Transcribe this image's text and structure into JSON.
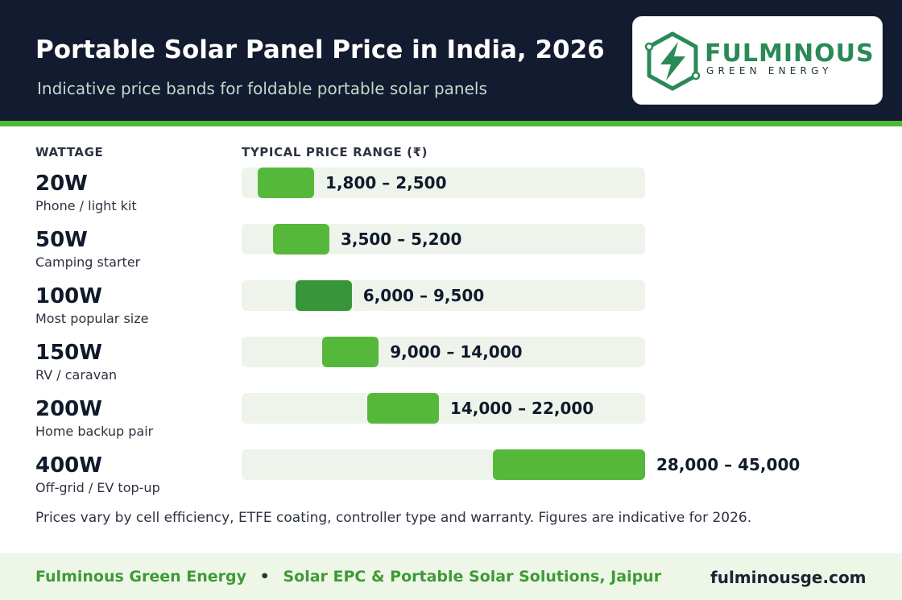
{
  "header": {
    "title": "Portable Solar Panel Price in India, 2026",
    "subtitle": "Indicative price bands for foldable portable solar panels"
  },
  "logo": {
    "name": "FULMINOUS",
    "tagline": "GREEN ENERGY",
    "icon": "lightning-hexagon-icon"
  },
  "columns": {
    "wattage": "WATTAGE",
    "price": "TYPICAL PRICE RANGE  (₹)"
  },
  "chart_data": {
    "type": "bar",
    "subtype": "floating-range",
    "axis_min": 0,
    "axis_max": 45000,
    "currency": "₹",
    "categories": [
      "20W",
      "50W",
      "100W",
      "150W",
      "200W",
      "400W"
    ],
    "rows": [
      {
        "wattage": "20W",
        "use": "Phone / light kit",
        "low": 1800,
        "high": 2500,
        "label": "1,800 – 2,500",
        "highlight": false
      },
      {
        "wattage": "50W",
        "use": "Camping starter",
        "low": 3500,
        "high": 5200,
        "label": "3,500 – 5,200",
        "highlight": false
      },
      {
        "wattage": "100W",
        "use": "Most popular size",
        "low": 6000,
        "high": 9500,
        "label": "6,000 – 9,500",
        "highlight": true
      },
      {
        "wattage": "150W",
        "use": "RV / caravan",
        "low": 9000,
        "high": 14000,
        "label": "9,000 – 14,000",
        "highlight": false
      },
      {
        "wattage": "200W",
        "use": "Home backup pair",
        "low": 14000,
        "high": 22000,
        "label": "14,000 – 22,000",
        "highlight": false
      },
      {
        "wattage": "400W",
        "use": "Off-grid / EV top-up",
        "low": 28000,
        "high": 45000,
        "label": "28,000 – 45,000",
        "highlight": false
      }
    ]
  },
  "footnote": "Prices vary by cell efficiency, ETFE coating, controller type and warranty. Figures are indicative for 2026.",
  "footer": {
    "company": "Fulminous Green Energy",
    "separator": "•",
    "tagline": "Solar EPC & Portable Solar Solutions, Jaipur",
    "url": "fulminousge.com"
  },
  "colors": {
    "header_bg": "#121b2f",
    "accent_green": "#4fb93a",
    "bar": "#56b83a",
    "bar_highlight": "#37963a",
    "track": "#eef4ec",
    "footer_bg": "#eef6e8"
  }
}
